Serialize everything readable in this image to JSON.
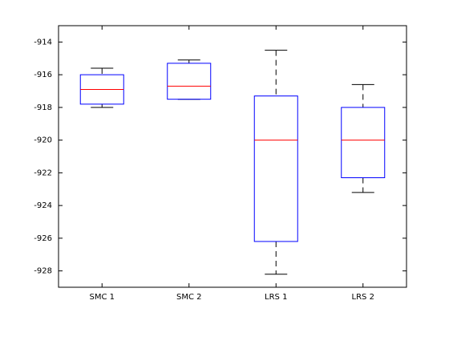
{
  "chart_data": {
    "type": "boxplot",
    "categories": [
      "SMC 1",
      "SMC 2",
      "LRS 1",
      "LRS 2"
    ],
    "boxes": [
      {
        "whislo": -918.0,
        "q1": -917.8,
        "med": -916.9,
        "q3": -916.0,
        "whishi": -915.6
      },
      {
        "whislo": -917.5,
        "q1": -917.5,
        "med": -916.7,
        "q3": -915.3,
        "whishi": -915.1
      },
      {
        "whislo": -928.2,
        "q1": -926.2,
        "med": -920.0,
        "q3": -917.3,
        "whishi": -914.5
      },
      {
        "whislo": -923.2,
        "q1": -922.3,
        "med": -920.0,
        "q3": -918.0,
        "whishi": -916.6
      }
    ],
    "box_color": "#0000ff",
    "median_color": "#ff0000",
    "whisker_color": "#000000",
    "ylim": [
      -929,
      -913
    ],
    "yticks": [
      -928,
      -926,
      -924,
      -922,
      -920,
      -918,
      -916,
      -914
    ]
  }
}
